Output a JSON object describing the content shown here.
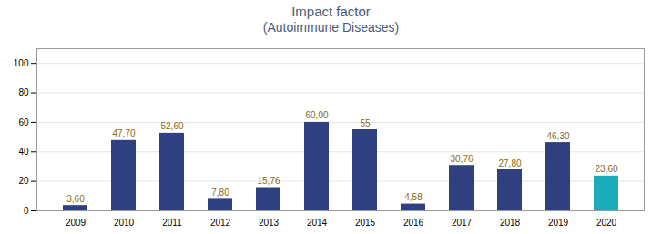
{
  "chart_data": {
    "type": "bar",
    "title": "Impact factor",
    "subtitle": "(Autoimmune Diseases)",
    "categories": [
      "2009",
      "2010",
      "2011",
      "2012",
      "2013",
      "2014",
      "2015",
      "2016",
      "2017",
      "2018",
      "2019",
      "2020"
    ],
    "values": [
      3.6,
      47.7,
      52.6,
      7.8,
      15.76,
      60.0,
      55.0,
      4.58,
      30.76,
      27.8,
      46.3,
      23.6
    ],
    "value_labels": [
      "3,60",
      "47,70",
      "52,60",
      "7,80",
      "15,76",
      "60,00",
      "55",
      "4,58",
      "30,76",
      "27,80",
      "46,30",
      "23,60"
    ],
    "data_labels": true,
    "colors": [
      "#2E4080",
      "#2E4080",
      "#2E4080",
      "#2E4080",
      "#2E4080",
      "#2E4080",
      "#2E4080",
      "#2E4080",
      "#2E4080",
      "#2E4080",
      "#2E4080",
      "#1AACB8"
    ],
    "ylim": [
      0,
      110
    ],
    "yticks": [
      0,
      20,
      40,
      60,
      80,
      100
    ],
    "grid": true
  }
}
